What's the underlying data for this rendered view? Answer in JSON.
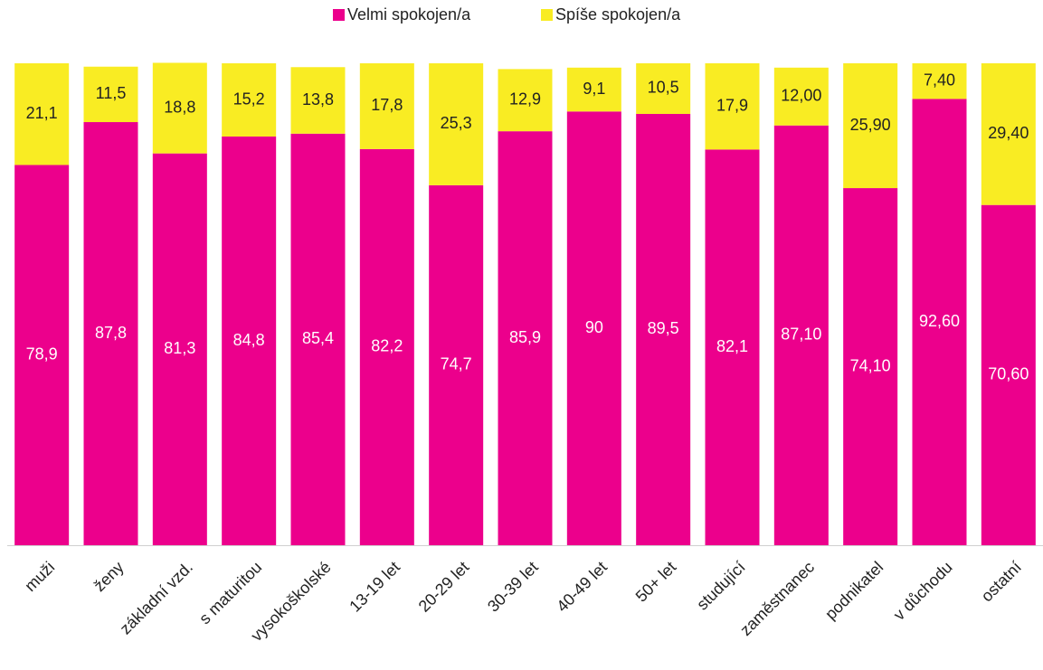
{
  "chart_data": {
    "type": "stacked_bar",
    "categories": [
      "muži",
      "ženy",
      "základní vzd.",
      "s maturitou",
      "vysokoškolské",
      "13-19 let",
      "20-29 let",
      "30-39 let",
      "40-49 let",
      "50+ let",
      "studující",
      "zaměstnanec",
      "podnikatel",
      "v důchodu",
      "ostatní"
    ],
    "series": [
      {
        "name": "Velmi spokojen/a",
        "color": "#ec008c",
        "values": [
          78.9,
          87.8,
          81.3,
          84.8,
          85.4,
          82.2,
          74.7,
          85.9,
          90,
          89.5,
          82.1,
          87.1,
          74.1,
          92.6,
          70.6
        ],
        "value_labels": [
          "78,9",
          "87,8",
          "81,3",
          "84,8",
          "85,4",
          "82,2",
          "74,7",
          "85,9",
          "90",
          "89,5",
          "82,1",
          "87,10",
          "74,10",
          "92,60",
          "70,60"
        ]
      },
      {
        "name": "Spíše spokojen/a",
        "color": "#f9ec23",
        "values": [
          21.1,
          11.5,
          18.8,
          15.2,
          13.8,
          17.8,
          25.3,
          12.9,
          9.1,
          10.5,
          17.9,
          12,
          25.9,
          7.4,
          29.4
        ],
        "value_labels": [
          "21,1",
          "11,5",
          "18,8",
          "15,2",
          "13,8",
          "17,8",
          "25,3",
          "12,9",
          "9,1",
          "10,5",
          "17,9",
          "12,00",
          "25,90",
          "7,40",
          "29,40"
        ]
      }
    ],
    "ylim": [
      0,
      100
    ],
    "legend": "top"
  }
}
